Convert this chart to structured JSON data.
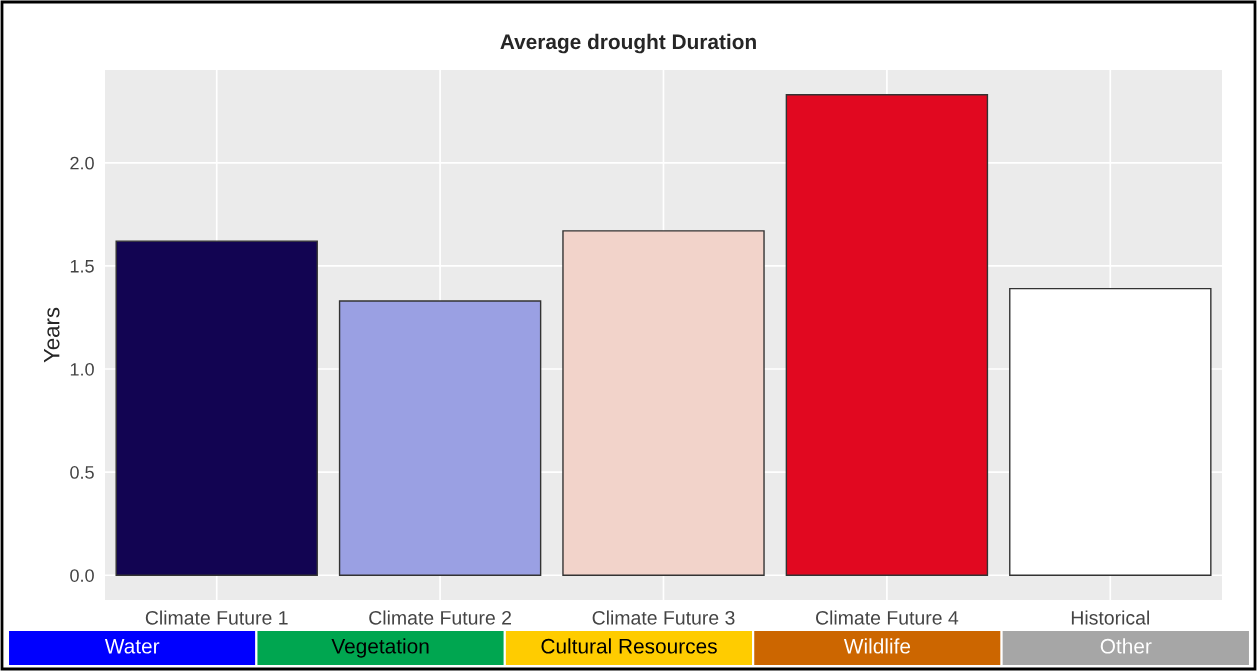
{
  "chart_data": {
    "type": "bar",
    "title": "Average drought Duration",
    "ylabel": "Years",
    "categories": [
      "Climate Future 1",
      "Climate Future 2",
      "Climate Future 3",
      "Climate Future 4",
      "Historical"
    ],
    "values": [
      1.62,
      1.33,
      1.67,
      2.33,
      1.39
    ],
    "colors": [
      "#120452",
      "#9aa0e3",
      "#f2d3ca",
      "#e10820",
      "#ffffff"
    ],
    "ylim": [
      -0.12,
      2.45
    ],
    "yticks": [
      {
        "value": 0,
        "label": "0.0"
      },
      {
        "value": 0.5,
        "label": "0.5"
      },
      {
        "value": 1,
        "label": "1.0"
      },
      {
        "value": 1.5,
        "label": "1.5"
      },
      {
        "value": 2,
        "label": "2.0"
      }
    ],
    "grid": true,
    "legend": false,
    "annotations": [
      "Water",
      "Vegetation",
      "Cultural Resources",
      "Wildlife",
      "Other"
    ]
  }
}
